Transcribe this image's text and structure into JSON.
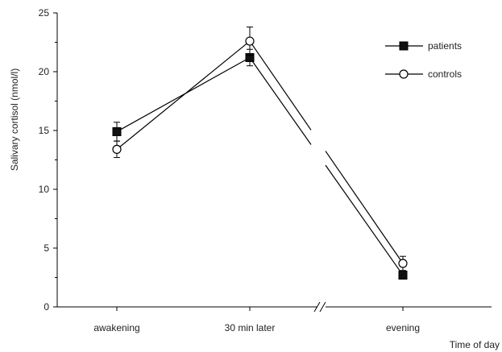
{
  "chart_data": {
    "type": "line",
    "categories": [
      "awakening",
      "30 min later",
      "evening"
    ],
    "xlabel": "Time of day",
    "ylabel": "Salivary cortisol (nmol/l)",
    "ylim": [
      0,
      25
    ],
    "yticks": [
      "0",
      "5",
      "10",
      "15",
      "20",
      "25"
    ],
    "grid": false,
    "legend_position": "top-right",
    "axis_break": "between 30 min later and evening",
    "series": [
      {
        "name": "patients",
        "marker": "filled-square",
        "values": [
          14.9,
          21.2,
          2.7
        ],
        "errors": [
          0.8,
          0.7,
          0.3
        ]
      },
      {
        "name": "controls",
        "marker": "open-circle",
        "values": [
          13.4,
          22.6,
          3.7
        ],
        "errors": [
          0.7,
          1.2,
          0.6
        ]
      }
    ]
  }
}
